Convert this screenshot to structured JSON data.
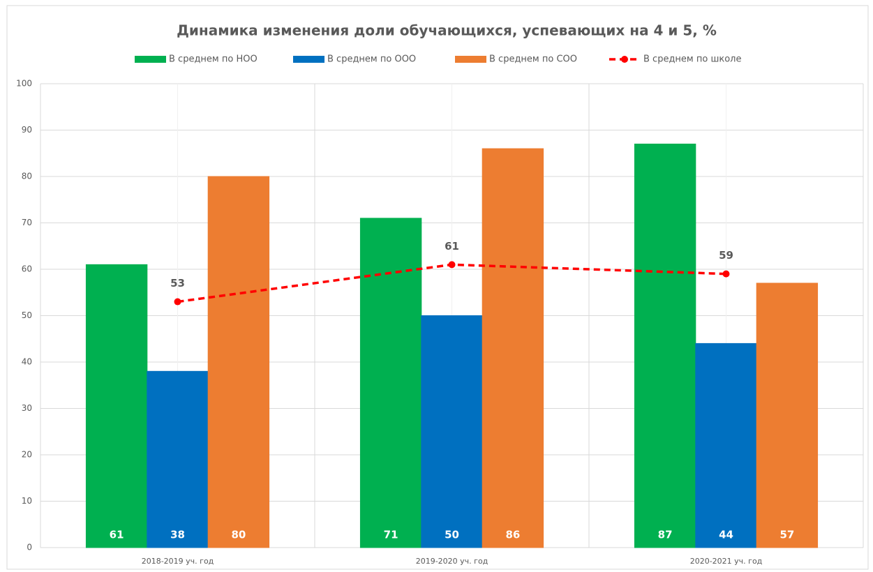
{
  "chart_data": {
    "type": "bar",
    "title": "Динамика изменения доли обучающихся, успевающих на 4 и 5, %",
    "categories": [
      "2018-2019 уч. год",
      "2019-2020 уч. год",
      "2020-2021 уч. год"
    ],
    "series": [
      {
        "name": "В среднем по НОО",
        "type": "bar",
        "color": "#00b050",
        "values": [
          61,
          71,
          87
        ]
      },
      {
        "name": "В среднем по ООО",
        "type": "bar",
        "color": "#0070c0",
        "values": [
          38,
          50,
          44
        ]
      },
      {
        "name": "В среднем по СОО",
        "type": "bar",
        "color": "#ed7d31",
        "values": [
          80,
          86,
          57
        ]
      },
      {
        "name": "В среднем по школе",
        "type": "line",
        "color": "#ff0000",
        "values": [
          53,
          61,
          59
        ]
      }
    ],
    "ylim": [
      0,
      100
    ],
    "yticks": [
      0,
      10,
      20,
      30,
      40,
      50,
      60,
      70,
      80,
      90,
      100
    ],
    "grid": true,
    "legend": "top"
  }
}
